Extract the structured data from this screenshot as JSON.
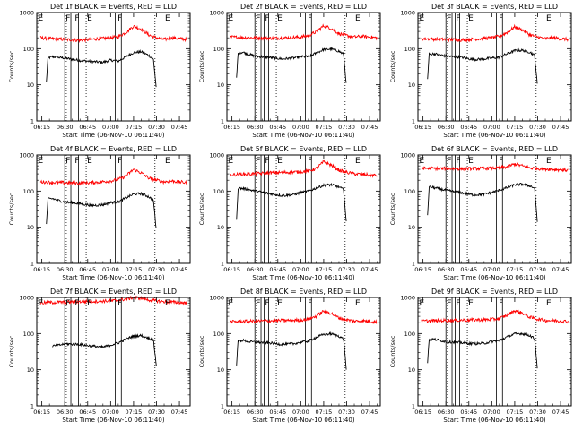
{
  "chart_data": {
    "type": "line",
    "layout": "3x3 grid of panels",
    "shared": {
      "xlabel": "Start Time (06-Nov-10 06:11:40)",
      "ylabel": "Counts/sec",
      "x_ticks": [
        "06:15",
        "06:30",
        "06:45",
        "07:00",
        "07:15",
        "07:30",
        "07:45"
      ],
      "x_tick_minutes": [
        15,
        30,
        45,
        60,
        75,
        90,
        105
      ],
      "xlim_minutes_after_06_00": [
        11.7,
        112
      ],
      "y_ticks": [
        "1",
        "10",
        "100",
        "1000"
      ],
      "ylim": [
        1,
        1000
      ],
      "y_scale": "log",
      "dotted_vertical_lines_minutes": [
        31,
        44,
        89
      ],
      "flare_markers": [
        {
          "label": "E",
          "minute": 12
        },
        {
          "label": "F",
          "minute": 30
        },
        {
          "label": "F",
          "minute": 36
        },
        {
          "label": "E",
          "minute": 44
        },
        {
          "label": "F",
          "minute": 64
        },
        {
          "label": "E",
          "minute": 95
        }
      ],
      "bracket_lines_minutes": [
        30,
        34,
        36,
        39,
        63,
        67
      ],
      "series_colors": {
        "Events": "#000000",
        "LLD": "#ff0000"
      }
    },
    "panels": [
      {
        "title": "Det 1f BLACK = Events, RED = LLD",
        "series": [
          {
            "name": "Events",
            "minutes": [
              18,
              19,
              22,
              26,
              30,
              40,
              48,
              55,
              60,
              65,
              70,
              75,
              80,
              85,
              88,
              90
            ],
            "values": [
              12,
              55,
              60,
              57,
              55,
              47,
              44,
              42,
              48,
              45,
              60,
              78,
              82,
              65,
              50,
              7
            ]
          },
          {
            "name": "LLD",
            "minutes": [
              14,
              20,
              30,
              40,
              50,
              60,
              65,
              70,
              75,
              80,
              85,
              90,
              95,
              100,
              110
            ],
            "values": [
              200,
              190,
              180,
              170,
              185,
              200,
              215,
              280,
              420,
              350,
              240,
              200,
              180,
              200,
              180
            ]
          }
        ]
      },
      {
        "title": "Det 2f BLACK = Events, RED = LLD",
        "series": [
          {
            "name": "Events",
            "minutes": [
              18,
              19,
              22,
              26,
              30,
              40,
              48,
              55,
              60,
              65,
              70,
              75,
              80,
              85,
              88,
              90
            ],
            "values": [
              15,
              75,
              80,
              70,
              62,
              57,
              52,
              55,
              60,
              60,
              75,
              95,
              98,
              85,
              70,
              8
            ]
          },
          {
            "name": "LLD",
            "minutes": [
              14,
              20,
              30,
              40,
              50,
              60,
              65,
              70,
              75,
              80,
              85,
              90,
              95,
              100,
              110
            ],
            "values": [
              210,
              205,
              200,
              195,
              200,
              210,
              230,
              290,
              430,
              360,
              260,
              230,
              210,
              220,
              200
            ]
          }
        ]
      },
      {
        "title": "Det 3f BLACK = Events, RED = LLD",
        "series": [
          {
            "name": "Events",
            "minutes": [
              18,
              19,
              22,
              26,
              30,
              40,
              48,
              55,
              60,
              65,
              70,
              75,
              80,
              85,
              88,
              90
            ],
            "values": [
              14,
              70,
              72,
              68,
              62,
              58,
              50,
              52,
              55,
              58,
              72,
              88,
              90,
              80,
              65,
              8
            ]
          },
          {
            "name": "LLD",
            "minutes": [
              14,
              20,
              30,
              40,
              50,
              60,
              65,
              70,
              75,
              80,
              85,
              90,
              95,
              100,
              110
            ],
            "values": [
              190,
              185,
              180,
              175,
              185,
              200,
              220,
              280,
              400,
              330,
              240,
              210,
              190,
              200,
              180
            ]
          }
        ]
      },
      {
        "title": "Det 4f BLACK = Events, RED = LLD",
        "series": [
          {
            "name": "Events",
            "minutes": [
              18,
              19,
              22,
              26,
              30,
              40,
              48,
              55,
              60,
              65,
              70,
              75,
              80,
              85,
              88,
              90
            ],
            "values": [
              12,
              60,
              62,
              55,
              50,
              45,
              40,
              42,
              48,
              50,
              65,
              82,
              85,
              70,
              55,
              7
            ]
          },
          {
            "name": "LLD",
            "minutes": [
              14,
              20,
              30,
              40,
              50,
              60,
              65,
              70,
              75,
              80,
              85,
              90,
              95,
              100,
              110
            ],
            "values": [
              180,
              175,
              170,
              165,
              175,
              190,
              210,
              260,
              400,
              320,
              230,
              200,
              180,
              190,
              170
            ]
          }
        ]
      },
      {
        "title": "Det 5f BLACK = Events, RED = LLD",
        "series": [
          {
            "name": "Events",
            "minutes": [
              18,
              19,
              22,
              26,
              30,
              40,
              48,
              55,
              60,
              65,
              70,
              75,
              80,
              85,
              88,
              90
            ],
            "values": [
              15,
              120,
              118,
              110,
              100,
              85,
              75,
              80,
              90,
              100,
              120,
              145,
              150,
              130,
              110,
              10
            ]
          },
          {
            "name": "LLD",
            "minutes": [
              14,
              20,
              30,
              40,
              50,
              60,
              65,
              70,
              75,
              80,
              85,
              90,
              95,
              100,
              110
            ],
            "values": [
              280,
              290,
              300,
              320,
              330,
              340,
              360,
              420,
              650,
              520,
              380,
              330,
              300,
              290,
              270
            ]
          }
        ]
      },
      {
        "title": "Det 6f BLACK = Events, RED = LLD",
        "series": [
          {
            "name": "Events",
            "minutes": [
              18,
              19,
              22,
              26,
              30,
              40,
              48,
              55,
              60,
              65,
              70,
              75,
              80,
              85,
              88,
              90
            ],
            "values": [
              20,
              130,
              125,
              115,
              105,
              90,
              78,
              82,
              92,
              105,
              125,
              150,
              155,
              140,
              120,
              10
            ]
          },
          {
            "name": "LLD",
            "minutes": [
              14,
              20,
              30,
              40,
              50,
              60,
              65,
              70,
              75,
              80,
              85,
              90,
              95,
              100,
              110
            ],
            "values": [
              430,
              425,
              420,
              415,
              420,
              430,
              440,
              470,
              560,
              500,
              440,
              420,
              410,
              400,
              380
            ]
          }
        ]
      },
      {
        "title": "Det 7f BLACK = Events, RED = LLD",
        "series": [
          {
            "name": "Events",
            "minutes": [
              22,
              26,
              30,
              40,
              48,
              55,
              60,
              65,
              70,
              75,
              80,
              85,
              88,
              90
            ],
            "values": [
              45,
              47,
              52,
              50,
              45,
              42,
              48,
              55,
              70,
              85,
              88,
              75,
              65,
              12
            ]
          },
          {
            "name": "LLD",
            "minutes": [
              14,
              20,
              30,
              40,
              50,
              60,
              65,
              70,
              75,
              80,
              85,
              90,
              95,
              100,
              110
            ],
            "values": [
              700,
              720,
              740,
              760,
              780,
              800,
              830,
              900,
              1000,
              950,
              850,
              800,
              760,
              740,
              700
            ]
          }
        ]
      },
      {
        "title": "Det 8f BLACK = Events, RED = LLD",
        "series": [
          {
            "name": "Events",
            "minutes": [
              18,
              19,
              22,
              26,
              30,
              40,
              48,
              55,
              60,
              65,
              70,
              75,
              80,
              85,
              88,
              90
            ],
            "values": [
              14,
              62,
              65,
              60,
              58,
              55,
              50,
              52,
              58,
              62,
              78,
              95,
              98,
              85,
              70,
              8
            ]
          },
          {
            "name": "LLD",
            "minutes": [
              14,
              20,
              30,
              40,
              50,
              60,
              65,
              70,
              75,
              80,
              85,
              90,
              95,
              100,
              110
            ],
            "values": [
              210,
              215,
              220,
              225,
              230,
              235,
              250,
              300,
              420,
              360,
              270,
              240,
              220,
              225,
              210
            ]
          }
        ]
      },
      {
        "title": "Det 9f BLACK = Events, RED = LLD",
        "series": [
          {
            "name": "Events",
            "minutes": [
              18,
              19,
              22,
              26,
              30,
              40,
              48,
              55,
              60,
              65,
              70,
              75,
              80,
              85,
              88,
              90
            ],
            "values": [
              16,
              68,
              70,
              65,
              60,
              56,
              52,
              54,
              60,
              64,
              80,
              98,
              100,
              88,
              72,
              9
            ]
          },
          {
            "name": "LLD",
            "minutes": [
              14,
              20,
              30,
              40,
              50,
              60,
              65,
              70,
              75,
              80,
              85,
              90,
              95,
              100,
              110
            ],
            "values": [
              220,
              225,
              230,
              235,
              240,
              245,
              260,
              320,
              430,
              370,
              280,
              250,
              230,
              230,
              215
            ]
          }
        ]
      }
    ]
  }
}
